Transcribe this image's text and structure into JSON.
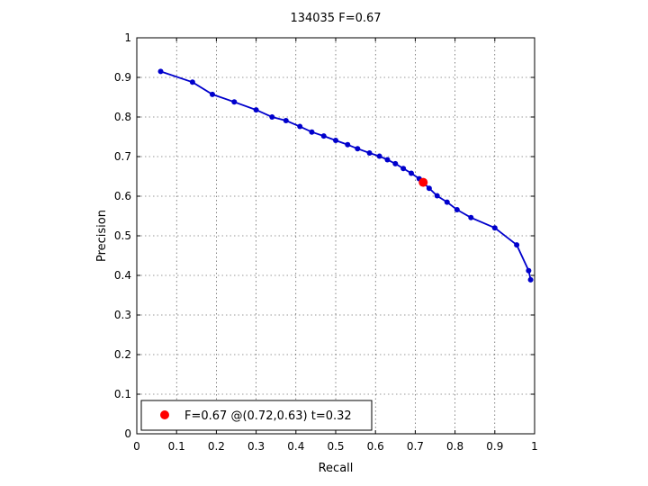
{
  "chart_data": {
    "type": "line",
    "title": "134035 F=0.67",
    "xlabel": "Recall",
    "ylabel": "Precision",
    "xlim": [
      0,
      1
    ],
    "ylim": [
      0,
      1
    ],
    "xticks": [
      "0",
      "0.1",
      "0.2",
      "0.3",
      "0.4",
      "0.5",
      "0.6",
      "0.7",
      "0.8",
      "0.9",
      "1"
    ],
    "yticks": [
      "0",
      "0.1",
      "0.2",
      "0.3",
      "0.4",
      "0.5",
      "0.6",
      "0.7",
      "0.8",
      "0.9",
      "1"
    ],
    "grid": true,
    "series": [
      {
        "color": "#0000cc",
        "points": [
          [
            0.06,
            0.915
          ],
          [
            0.14,
            0.888
          ],
          [
            0.19,
            0.857
          ],
          [
            0.245,
            0.838
          ],
          [
            0.3,
            0.818
          ],
          [
            0.34,
            0.8
          ],
          [
            0.375,
            0.791
          ],
          [
            0.41,
            0.776
          ],
          [
            0.44,
            0.762
          ],
          [
            0.47,
            0.752
          ],
          [
            0.5,
            0.741
          ],
          [
            0.53,
            0.73
          ],
          [
            0.555,
            0.72
          ],
          [
            0.585,
            0.709
          ],
          [
            0.61,
            0.701
          ],
          [
            0.63,
            0.692
          ],
          [
            0.65,
            0.682
          ],
          [
            0.67,
            0.67
          ],
          [
            0.69,
            0.658
          ],
          [
            0.71,
            0.644
          ],
          [
            0.735,
            0.62
          ],
          [
            0.755,
            0.601
          ],
          [
            0.78,
            0.585
          ],
          [
            0.805,
            0.566
          ],
          [
            0.84,
            0.546
          ],
          [
            0.9,
            0.52
          ],
          [
            0.955,
            0.477
          ],
          [
            0.985,
            0.412
          ],
          [
            0.99,
            0.389
          ]
        ]
      }
    ],
    "highlight": {
      "x": 0.72,
      "y": 0.635,
      "color": "#ff0000"
    },
    "legend": {
      "position": "bottom-left",
      "text": "F=0.67 @(0.72,0.63) t=0.32"
    }
  }
}
